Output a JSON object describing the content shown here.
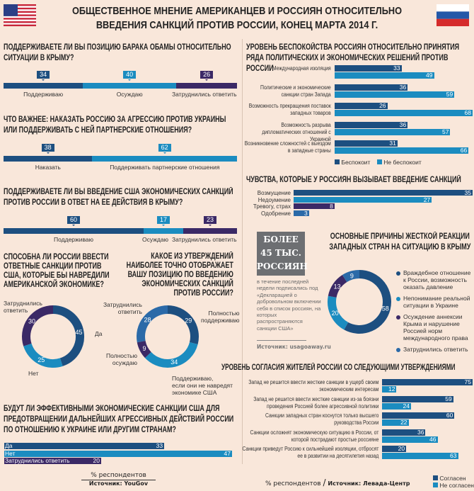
{
  "colors": {
    "dark": "#1d4f80",
    "light": "#1b8cc0",
    "purple": "#3b2966",
    "mid": "#2b6aa8",
    "bg": "#f9e7da"
  },
  "header": {
    "title_line1": "ОБЩЕСТВЕННОЕ МНЕНИЕ АМЕРИКАНЦЕВ И РОССИЯН ОТНОСИТЕЛЬНО",
    "title_line2": "ВВЕДЕНИЯ САНКЦИЙ ПРОТИВ РОССИИ, КОНЕЦ МАРТА 2014 Г.",
    "left_flag": "us-flag",
    "right_flag": "russia-flag"
  },
  "chart_data": [
    {
      "id": "q1",
      "type": "bar",
      "stacked": true,
      "title": "ПОДДЕРЖИВАЕТЕ ЛИ ВЫ ПОЗИЦИЮ БАРАКА ОБАМЫ ОТНОСИТЕЛЬНО СИТУАЦИИ В КРЫМУ?",
      "categories": [
        "Поддерживаю",
        "Осуждаю",
        "Затруднились ответить"
      ],
      "values": [
        34,
        40,
        26
      ],
      "colors": [
        "#1d4f80",
        "#1b8cc0",
        "#3b2966"
      ]
    },
    {
      "id": "q2",
      "type": "bar",
      "stacked": true,
      "title": "ЧТО ВАЖНЕЕ: НАКАЗАТЬ РОССИЮ ЗА АГРЕССИЮ ПРОТИВ УКРАИНЫ ИЛИ ПОДДЕРЖИВАТЬ С НЕЙ ПАРТНЕРСКИЕ ОТНОШЕНИЯ?",
      "categories": [
        "Наказать",
        "Поддерживать партнерские отношения"
      ],
      "values": [
        38,
        62
      ],
      "colors": [
        "#1d4f80",
        "#1b8cc0"
      ]
    },
    {
      "id": "q3",
      "type": "bar",
      "stacked": true,
      "title": "ПОДДЕРЖИВАЕТЕ ЛИ ВЫ ВВЕДЕНИЕ США ЭКОНОМИЧЕСКИХ САНКЦИЙ ПРОТИВ РОССИИ В ОТВЕТ НА ЕЕ ДЕЙСТВИЯ В КРЫМУ?",
      "categories": [
        "Поддерживаю",
        "Осуждаю",
        "Затруднились ответить"
      ],
      "values": [
        60,
        17,
        23
      ],
      "colors": [
        "#1d4f80",
        "#1b8cc0",
        "#3b2966"
      ]
    },
    {
      "id": "q4",
      "type": "pie",
      "donut": true,
      "title": "СПОСОБНА ЛИ РОССИИ ВВЕСТИ ОТВЕТНЫЕ САНКЦИИ ПРОТИВ США, КОТОРЫЕ БЫ НАВРЕДИЛИ АМЕРИКАНСКОЙ ЭКОНОМИКЕ?",
      "categories": [
        "Да",
        "Нет",
        "Затруднились ответить"
      ],
      "values": [
        45,
        25,
        30
      ],
      "colors": [
        "#1d4f80",
        "#1b8cc0",
        "#3b2966"
      ]
    },
    {
      "id": "q5",
      "type": "pie",
      "donut": true,
      "title": "КАКОЕ ИЗ УТВЕРЖДЕНИЙ НАИБОЛЕЕ ТОЧНО ОТОБРАЖАЕТ ВАШУ ПОЗИЦИЮ ПО ВВЕДЕНИЮ ЭКОНОМИЧЕСКИХ САНКЦИЙ ПРОТИВ РОССИИ?",
      "categories": [
        "Полностью поддерживаю",
        "Поддерживаю, если они не навредят экономике США",
        "Полностью осуждаю",
        "Затруднились ответить"
      ],
      "values": [
        29,
        34,
        9,
        28
      ],
      "colors": [
        "#1d4f80",
        "#1b8cc0",
        "#3b2966",
        "#2b6aa8"
      ]
    },
    {
      "id": "q6",
      "type": "bar",
      "title": "БУДУТ ЛИ ЭФФЕКТИВНЫМИ ЭКОНОМИЧЕСКИЕ САНКЦИИ США ДЛЯ ПРЕДОТВРАЩЕНИИ ДАЛЬНЕЙШИХ АГРЕССИВНЫХ ДЕЙСТВИЙ РОССИИ ПО ОТНОШЕНИЮ К УКРАИНЕ ИЛИ ДРУГИМ СТРАНАМ?",
      "categories": [
        "Да",
        "Нет",
        "Затруднились ответить"
      ],
      "values": [
        33,
        47,
        20
      ],
      "colors": [
        "#1d4f80",
        "#1b8cc0",
        "#3b2966"
      ]
    },
    {
      "id": "r1",
      "type": "bar",
      "orientation": "horizontal",
      "title": "УРОВЕНЬ БЕСПОКОЙСТВА РОССИЯН ОТНОСИТЕЛЬНО ПРИНЯТИЯ РЯДА ПОЛИТИЧЕСКИХ И ЭКОНОМИЧЕСКИХ РЕШЕНИЙ ПРОТИВ РОССИИ",
      "categories": [
        "Международная изоляция",
        "Политические и экономические санкции стран Запада",
        "Возможность прекращения поставок западных товаров",
        "Возможность разрыва дипломатических отношений с Украиной",
        "Возникновение сложностей с выездом в западные страны"
      ],
      "series": [
        {
          "name": "Беспокоит",
          "values": [
            33,
            36,
            26,
            36,
            31
          ],
          "color": "#1d4f80"
        },
        {
          "name": "Не беспокоит",
          "values": [
            49,
            59,
            68,
            57,
            66
          ],
          "color": "#1b8cc0"
        }
      ],
      "legend": "bottom"
    },
    {
      "id": "r2",
      "type": "bar",
      "orientation": "horizontal",
      "title": "ЧУВСТВА, КОТОРЫЕ У РОССИЯН ВЫЗЫВАЕТ ВВЕДЕНИЕ САНКЦИЙ",
      "categories": [
        "Возмущение",
        "Недоумение",
        "Тревогу, страх",
        "Одобрение"
      ],
      "values": [
        35,
        27,
        8,
        3
      ],
      "colors": [
        "#1d4f80",
        "#1b8cc0",
        "#3b2966",
        "#2b6aa8"
      ]
    },
    {
      "id": "r3",
      "type": "pie",
      "donut": true,
      "title": "ОСНОВНЫЕ ПРИЧИНЫ ЖЕСТКОЙ РЕАКЦИИ ЗАПАДНЫХ СТРАН НА СИТУАЦИЮ В КРЫМУ",
      "categories": [
        "Враждебное отношение к России, возможность оказать давление",
        "Непонимание реальной ситуации в Украине",
        "Осуждение аннексии Крыма и нарушение Россией норм международного права",
        "Затруднились ответить"
      ],
      "values": [
        58,
        20,
        13,
        9
      ],
      "colors": [
        "#1d4f80",
        "#1b8cc0",
        "#3b2966",
        "#2b6aa8"
      ],
      "legend": "right"
    },
    {
      "id": "r4",
      "type": "bar",
      "orientation": "horizontal",
      "title": "УРОВЕНЬ СОГЛАСИЯ ЖИТЕЛЕЙ РОССИИ СО СЛЕДУЮЩИМИ УТВЕРЖДЕНИЯМИ",
      "categories": [
        "Запад не решится ввести жесткие санкции в ущерб своим экономическим интересам",
        "Запад не решится ввести жесткие санкции из-за боязни проведения Россией более агрессивной политики",
        "Санкции западных стран коснутся только высшего руководства России",
        "Санкции осложнят экономическую ситуацию в России, от которой пострадают простые россияне",
        "Санкции приведут Россию к сильнейшей изоляции, отбросят ее в развитии на десятилетия назад"
      ],
      "series": [
        {
          "name": "Согласен",
          "values": [
            75,
            59,
            60,
            36,
            20
          ],
          "color": "#1d4f80"
        },
        {
          "name": "Не согласен",
          "values": [
            12,
            24,
            22,
            46,
            63
          ],
          "color": "#1b8cc0"
        }
      ],
      "legend": "bottom-right"
    }
  ],
  "q4_labels": {
    "yes": "Да",
    "no": "Нет",
    "unsure_1": "Затруднились",
    "unsure_2": "ответить"
  },
  "q5_labels": {
    "full_support_1": "Полностью",
    "full_support_2": "поддерживаю",
    "cond_1": "Поддерживаю,",
    "cond_2": "если они не навредят",
    "cond_3": "экономике США",
    "condemn_1": "Полностью",
    "condemn_2": "осуждаю",
    "unsure_1": "Затруднились",
    "unsure_2": "ответить"
  },
  "q4_title_lines": [
    "СПОСОБНА ЛИ РОССИИ ВВЕСТИ",
    "ОТВЕТНЫЕ САНКЦИИ ПРОТИВ",
    "США, КОТОРЫЕ БЫ НАВРЕДИЛИ",
    "АМЕРИКАНСКОЙ ЭКОНОМИКЕ?"
  ],
  "q5_title_lines": [
    "КАКОЕ ИЗ УТВЕРЖДЕНИЙ",
    "НАИБОЛЕЕ ТОЧНО ОТОБРАЖАЕТ",
    "ВАШУ ПОЗИЦИЮ ПО ВВЕДЕНИЮ",
    "ЭКОНОМИЧЕСКИХ САНКЦИЙ",
    "ПРОТИВ РОССИИ?"
  ],
  "left_footer": {
    "unit": "% респондентов",
    "source": "Источник: YouGov"
  },
  "right_footer": {
    "unit": "% респондентов",
    "source": "Источник: Левада-Центр"
  },
  "callout": {
    "big_1": "БОЛЕЕ",
    "big_2": "45 ТЫС.",
    "big_3": "РОССИЯН",
    "text": "в течение последней недели подписались под «Декларацией о добровольном включении себя в список россиян, на которых распространяются санкции США»",
    "source": "Источник: usagoaway.ru"
  }
}
